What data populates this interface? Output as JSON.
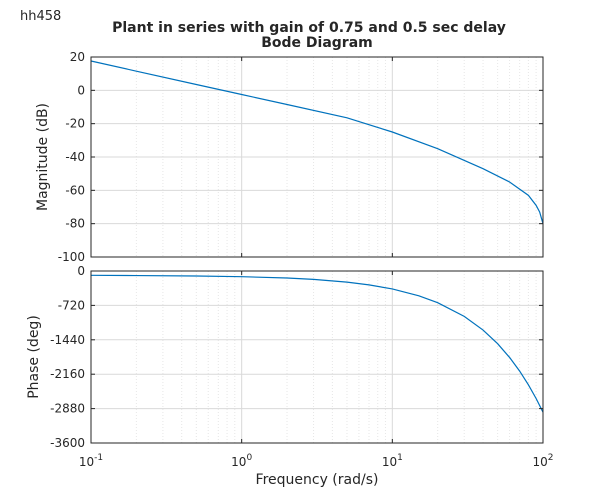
{
  "figure": {
    "corner_label": "hh458",
    "title": "Plant in series with gain of 0.75 and 0.5 sec delay",
    "subtitle": "Bode Diagram"
  },
  "chart_data": [
    {
      "type": "line",
      "panel": "magnitude",
      "ylabel": "Magnitude (dB)",
      "xscale": "log",
      "xlim": [
        0.1,
        100
      ],
      "ylim": [
        -100,
        20
      ],
      "yticks": [
        20,
        0,
        -20,
        -40,
        -60,
        -80,
        -100
      ],
      "grid": true,
      "series": [
        {
          "color": "#0072bd",
          "x": [
            0.1,
            0.2,
            0.5,
            1,
            2,
            5,
            10,
            20,
            40,
            60,
            80,
            90,
            95,
            100
          ],
          "y": [
            17.6,
            11.5,
            3.5,
            -2.5,
            -8.5,
            -16.5,
            -25,
            -35,
            -47,
            -55,
            -63,
            -69,
            -73,
            -80
          ]
        }
      ]
    },
    {
      "type": "line",
      "panel": "phase",
      "ylabel": "Phase (deg)",
      "xlabel": "Frequency  (rad/s)",
      "xscale": "log",
      "xlim": [
        0.1,
        100
      ],
      "ylim": [
        -3600,
        0
      ],
      "yticks": [
        0,
        -720,
        -1440,
        -2160,
        -2880,
        -3600
      ],
      "xticks": [
        0.1,
        1,
        10,
        100
      ],
      "xticklabels": [
        {
          "base": "10",
          "exp": "-1"
        },
        {
          "base": "10",
          "exp": "0"
        },
        {
          "base": "10",
          "exp": "1"
        },
        {
          "base": "10",
          "exp": "2"
        }
      ],
      "grid": true,
      "series": [
        {
          "color": "#0072bd",
          "x": [
            0.1,
            0.2,
            0.5,
            1,
            2,
            3,
            5,
            7,
            10,
            15,
            20,
            30,
            40,
            50,
            60,
            70,
            80,
            90,
            100
          ],
          "y": [
            -90,
            -95,
            -104,
            -119,
            -147,
            -176,
            -233,
            -291,
            -376,
            -520,
            -663,
            -950,
            -1236,
            -1522,
            -1809,
            -2095,
            -2382,
            -2668,
            -2955
          ]
        }
      ]
    }
  ]
}
